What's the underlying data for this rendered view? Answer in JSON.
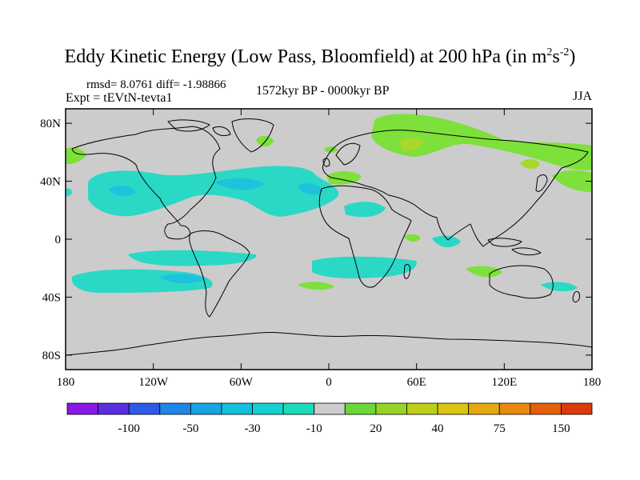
{
  "title": {
    "main": "Eddy Kinetic Energy (Low Pass, Bloomfield) at 200 hPa (in m",
    "sup1": "2",
    "mid": "s",
    "sup2": "-2",
    "close": ")"
  },
  "stats": "rmsd= 8.0761 diff= -1.98866",
  "experiment": "Expt = tEVtN-tevta1",
  "period": "1572kyr BP - 0000kyr BP",
  "season": "JJA",
  "map": {
    "lon_range": [
      -180,
      180
    ],
    "lat_range": [
      -90,
      90
    ],
    "x_ticks": [
      {
        "value": -180,
        "label": "180"
      },
      {
        "value": -120,
        "label": "120W"
      },
      {
        "value": -60,
        "label": "60W"
      },
      {
        "value": 0,
        "label": "0"
      },
      {
        "value": 60,
        "label": "60E"
      },
      {
        "value": 120,
        "label": "120E"
      },
      {
        "value": 180,
        "label": "180"
      }
    ],
    "y_ticks": [
      {
        "value": 80,
        "label": "80N"
      },
      {
        "value": 40,
        "label": "40N"
      },
      {
        "value": 0,
        "label": "0"
      },
      {
        "value": -40,
        "label": "40S"
      },
      {
        "value": -80,
        "label": "80S"
      }
    ],
    "background_color": "#cccccc"
  },
  "colorbar": {
    "colors": [
      "#8a18e6",
      "#5a2ee0",
      "#2d5ae6",
      "#1e86e6",
      "#16a5e0",
      "#12c0dc",
      "#14d2d0",
      "#18dcbc",
      "#cccccc",
      "#6ad838",
      "#96d428",
      "#bcd01a",
      "#dcc410",
      "#e6a80e",
      "#e8880e",
      "#e4600c",
      "#dc3a0a"
    ],
    "labels": [
      "-100",
      "-50",
      "-30",
      "-10",
      "20",
      "40",
      "75",
      "150"
    ],
    "label_boundaries": [
      2,
      4,
      6,
      8,
      10,
      12,
      14,
      16
    ]
  },
  "colors": {
    "negative_fill": "#2ad8c6",
    "negative_core": "#1ec2dc",
    "positive_fill": "#7ee03a",
    "positive_core": "#a8d82a"
  }
}
